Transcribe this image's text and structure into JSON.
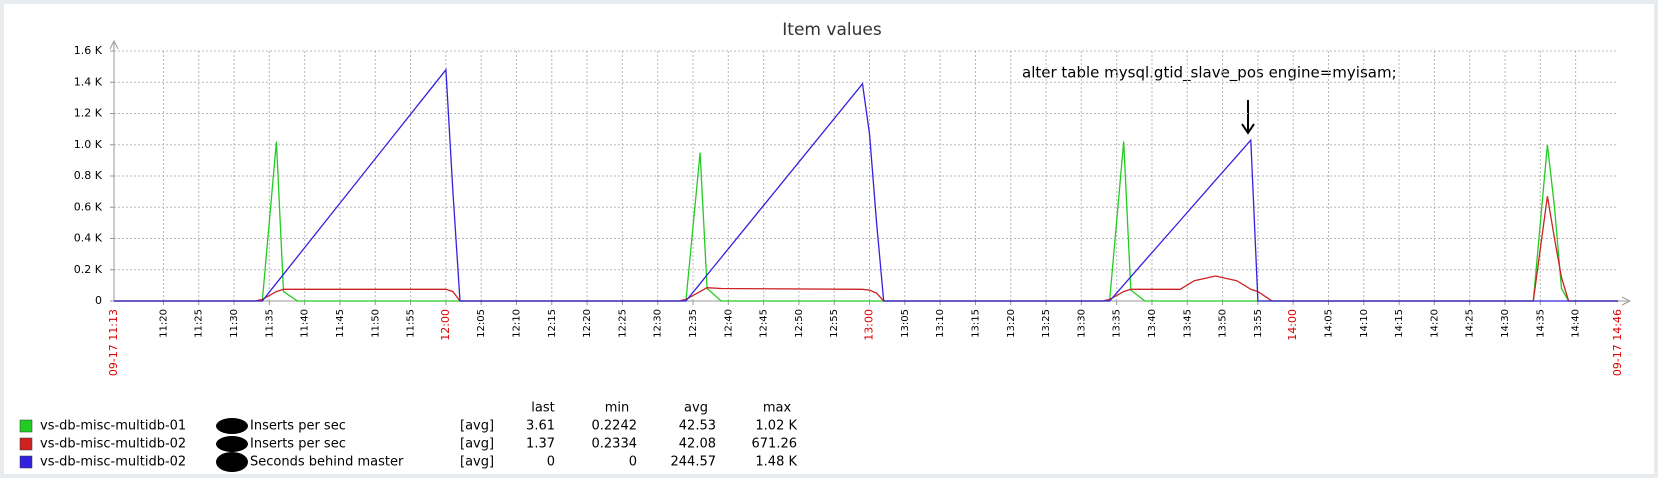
{
  "chart_data": {
    "type": "line",
    "title": "Item values",
    "annotation": "alter table mysql.gtid_slave_pos engine=myisam;",
    "xlim": [
      "09-17 11:13",
      "09-17 14:46"
    ],
    "xticks": [
      "11:20",
      "11:25",
      "11:30",
      "11:35",
      "11:40",
      "11:45",
      "11:50",
      "11:55",
      "12:00",
      "12:05",
      "12:10",
      "12:15",
      "12:20",
      "12:25",
      "12:30",
      "12:35",
      "12:40",
      "12:45",
      "12:50",
      "12:55",
      "13:00",
      "13:05",
      "13:10",
      "13:15",
      "13:20",
      "13:25",
      "13:30",
      "13:35",
      "13:40",
      "13:45",
      "13:50",
      "13:55",
      "14:00",
      "14:05",
      "14:10",
      "14:15",
      "14:20",
      "14:25",
      "14:30",
      "14:35",
      "14:40"
    ],
    "ylim": [
      0,
      1600
    ],
    "yticks": [
      0,
      {
        "value": 200,
        "label": "0.2 K"
      },
      {
        "value": 400,
        "label": "0.4 K"
      },
      {
        "value": 600,
        "label": "0.6 K"
      },
      {
        "value": 800,
        "label": "0.8 K"
      },
      {
        "value": 1000,
        "label": "1.0 K"
      },
      {
        "value": 1200,
        "label": "1.2 K"
      },
      {
        "value": 1400,
        "label": "1.4 K"
      },
      {
        "value": 1600,
        "label": "1.6 K"
      }
    ],
    "grid": true,
    "x": [
      "11:13",
      "11:33",
      "11:34",
      "11:36",
      "11:37",
      "11:39",
      "12:00",
      "12:01",
      "12:02",
      "12:33",
      "12:34",
      "12:36",
      "12:37",
      "12:39",
      "12:59",
      "13:00",
      "13:01",
      "13:02",
      "13:33",
      "13:34",
      "13:36",
      "13:37",
      "13:39",
      "13:44",
      "13:46",
      "13:49",
      "13:52",
      "13:54",
      "13:55",
      "13:57",
      "14:33",
      "14:34",
      "14:36",
      "14:37",
      "14:38",
      "14:39",
      "14:46"
    ],
    "series": [
      {
        "name": "vs-db-misc-multidb-01",
        "item": "Inserts per sec",
        "function": "[avg]",
        "stats": [
          "3.61",
          "0.2242",
          "42.53",
          "1.02 K"
        ],
        "color": "#22cc22",
        "values": [
          0,
          0,
          0,
          1020,
          60,
          0,
          0,
          0,
          0,
          0,
          0,
          950,
          80,
          0,
          0,
          0,
          0,
          0,
          0,
          0,
          1020,
          70,
          0,
          0,
          0,
          0,
          0,
          0,
          0,
          0,
          0,
          0,
          1000,
          600,
          80,
          0,
          0
        ]
      },
      {
        "name": "vs-db-misc-multidb-02",
        "item": "Inserts per sec",
        "function": "[avg]",
        "stats": [
          "1.37",
          "0.2334",
          "42.08",
          "671.26"
        ],
        "color": "#cc2222",
        "values": [
          0,
          0,
          10,
          60,
          75,
          75,
          75,
          60,
          0,
          0,
          10,
          60,
          85,
          80,
          75,
          70,
          50,
          0,
          0,
          10,
          60,
          75,
          75,
          75,
          130,
          160,
          130,
          75,
          60,
          0,
          0,
          0,
          671,
          400,
          150,
          0,
          0
        ]
      },
      {
        "name": "vs-db-misc-multidb-02",
        "item": "Seconds behind master",
        "function": "[avg]",
        "stats": [
          "0",
          "0",
          "244.57",
          "1.48 K"
        ],
        "color": "#3322dd",
        "values": [
          0,
          0,
          0,
          114,
          171,
          285,
          1480,
          700,
          0,
          0,
          0,
          111,
          167,
          278,
          1390,
          1070,
          500,
          0,
          0,
          0,
          103,
          155,
          258,
          515,
          618,
          773,
          927,
          1030,
          0,
          0,
          0,
          0,
          0,
          0,
          0,
          0,
          0
        ]
      }
    ],
    "legend_headers": [
      "last",
      "min",
      "avg",
      "max"
    ]
  }
}
